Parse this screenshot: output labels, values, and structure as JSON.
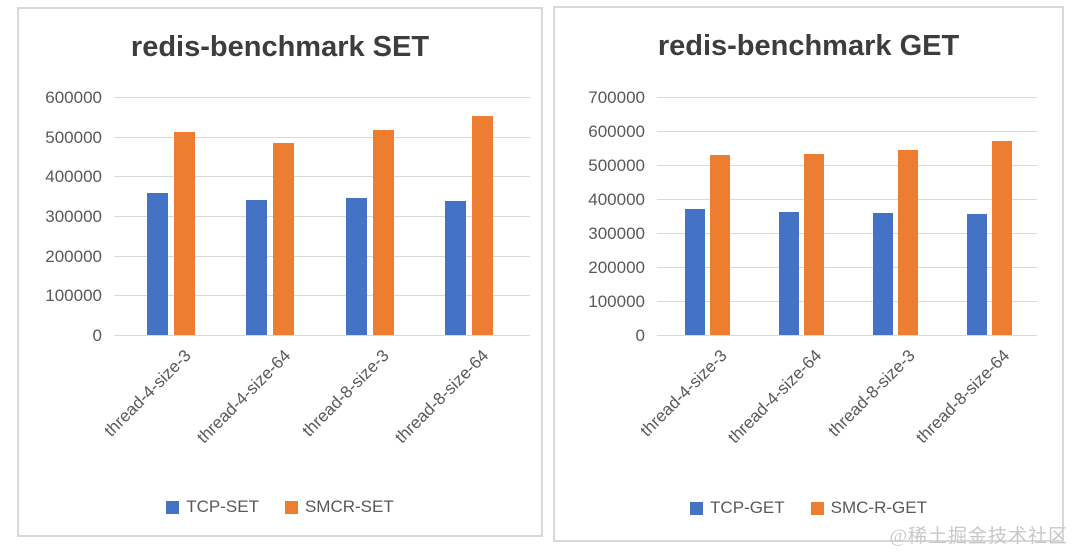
{
  "watermark": "@稀土掘金技术社区",
  "colors": {
    "series_blue": "#4472C4",
    "series_orange": "#ED7D31",
    "gridline": "#D9D9D9",
    "axis_text": "#595959",
    "title_text": "#3D3D3D",
    "panel_border": "#D9D9D9",
    "watermark_text": "#C8C8C8"
  },
  "chart_data": [
    {
      "type": "bar",
      "title": "redis-benchmark SET",
      "categories": [
        "thread-4-size-3",
        "thread-4-size-64",
        "thread-8-size-3",
        "thread-8-size-64"
      ],
      "series": [
        {
          "name": "TCP-SET",
          "color": "#4472C4",
          "values": [
            357000,
            340000,
            346000,
            338000
          ]
        },
        {
          "name": "SMCR-SET",
          "color": "#ED7D31",
          "values": [
            512000,
            485000,
            516000,
            551000
          ]
        }
      ],
      "ylim": [
        0,
        600000
      ],
      "ytick_step": 100000,
      "ytick_labels": [
        "0",
        "100000",
        "200000",
        "300000",
        "400000",
        "500000",
        "600000"
      ],
      "grid": true,
      "legend_position": "bottom"
    },
    {
      "type": "bar",
      "title": "redis-benchmark GET",
      "categories": [
        "thread-4-size-3",
        "thread-4-size-64",
        "thread-8-size-3",
        "thread-8-size-64"
      ],
      "series": [
        {
          "name": "TCP-GET",
          "color": "#4472C4",
          "values": [
            370000,
            363000,
            360000,
            357000
          ]
        },
        {
          "name": "SMC-R-GET",
          "color": "#ED7D31",
          "values": [
            529000,
            532000,
            545000,
            570000
          ]
        }
      ],
      "ylim": [
        0,
        700000
      ],
      "ytick_step": 100000,
      "ytick_labels": [
        "0",
        "100000",
        "200000",
        "300000",
        "400000",
        "500000",
        "600000",
        "700000"
      ],
      "grid": true,
      "legend_position": "bottom"
    }
  ]
}
